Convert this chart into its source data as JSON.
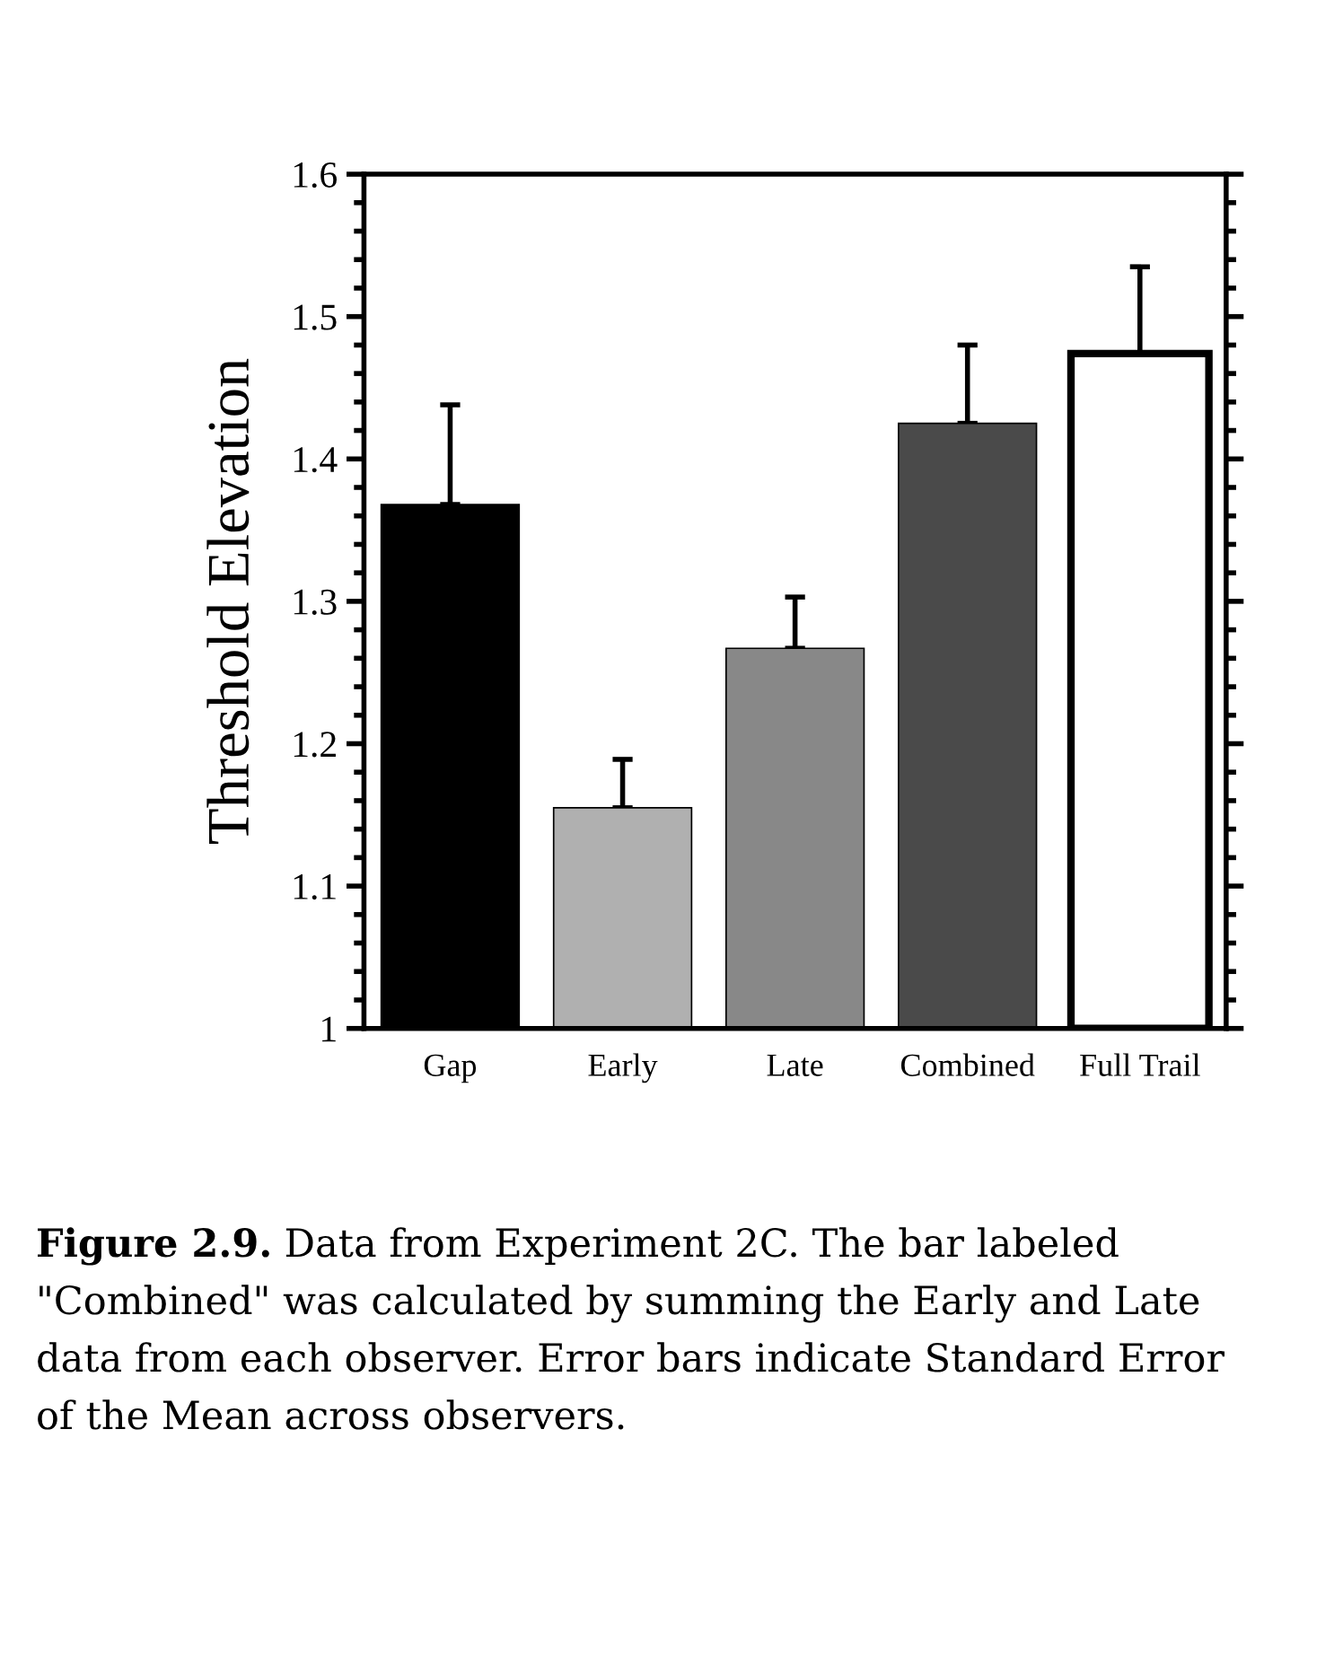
{
  "chart_data": {
    "type": "bar",
    "ylabel": "Threshold Elevation",
    "categories": [
      "Gap",
      "Early",
      "Late",
      "Combined",
      "Full Trail"
    ],
    "values": [
      1.368,
      1.155,
      1.267,
      1.425,
      1.474
    ],
    "colors": [
      "#000000",
      "#b0b0b0",
      "#888888",
      "#4a4a4a",
      "#ffffff"
    ],
    "errors": [
      [
        1.368,
        1.438
      ],
      [
        1.155,
        1.189
      ],
      [
        1.267,
        1.303
      ],
      [
        1.425,
        1.48
      ],
      [
        1.474,
        1.535
      ]
    ],
    "ylim": [
      1,
      1.6
    ],
    "yticks": [
      1,
      1.1,
      1.2,
      1.3,
      1.4,
      1.5,
      1.6
    ],
    "grid": false,
    "annotations": [
      "Figure 2.9.",
      "Data from Experiment 2C. The bar labeled \"Combined\" was calculated by summing the Early and Late data from each observer. Error bars indicate Standard Error of the Mean across observers."
    ]
  }
}
